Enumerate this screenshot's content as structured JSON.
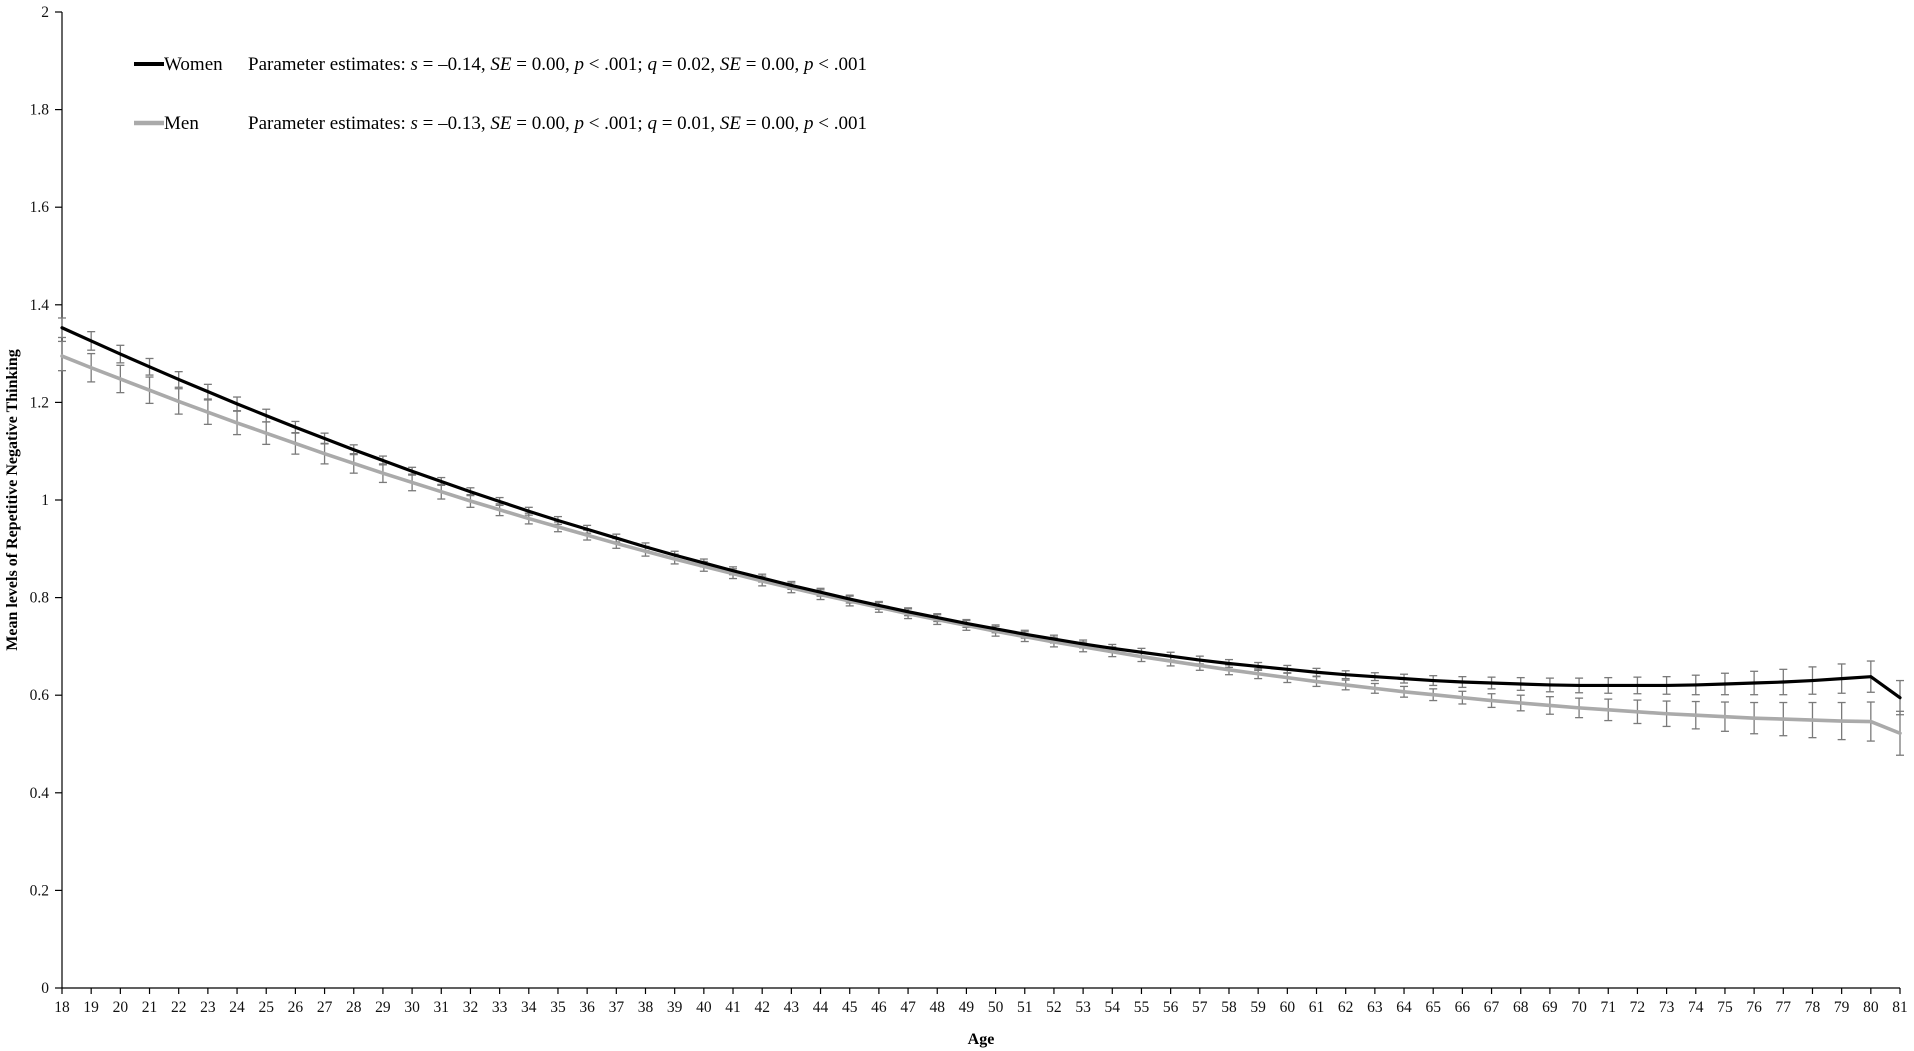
{
  "chart_data": {
    "type": "line",
    "title": "",
    "xlabel": "Age",
    "ylabel": "Mean levels of Repetitive Negative Thinking",
    "xlim": [
      18,
      81
    ],
    "ylim": [
      0,
      2
    ],
    "yticks": [
      "0",
      "0.2",
      "0.4",
      "0.6",
      "0.8",
      "1",
      "1.2",
      "1.4",
      "1.6",
      "1.8",
      "2"
    ],
    "ytick_values": [
      0,
      0.2,
      0.4,
      0.6,
      0.8,
      1,
      1.2,
      1.4,
      1.6,
      1.8,
      2
    ],
    "grid": false,
    "legend_position": "top-left",
    "x": [
      18,
      19,
      20,
      21,
      22,
      23,
      24,
      25,
      26,
      27,
      28,
      29,
      30,
      31,
      32,
      33,
      34,
      35,
      36,
      37,
      38,
      39,
      40,
      41,
      42,
      43,
      44,
      45,
      46,
      47,
      48,
      49,
      50,
      51,
      52,
      53,
      54,
      55,
      56,
      57,
      58,
      59,
      60,
      61,
      62,
      63,
      64,
      65,
      66,
      67,
      68,
      69,
      70,
      71,
      72,
      73,
      74,
      75,
      76,
      77,
      78,
      79,
      80,
      81
    ],
    "series": [
      {
        "name": "Women",
        "color": "#000000",
        "annotation": {
          "prefix": "Parameter estimates: ",
          "parts": [
            {
              "sym": "s",
              "text": " = –0.14, "
            },
            {
              "sym": "SE",
              "text": " = 0.00, "
            },
            {
              "sym": "p",
              "text": " < .001; "
            },
            {
              "sym": "q",
              "text": " = 0.02, "
            },
            {
              "sym": "SE",
              "text": " = 0.00, "
            },
            {
              "sym": "p",
              "text": " < .001"
            }
          ]
        },
        "values": [
          1.353,
          1.326,
          1.299,
          1.273,
          1.247,
          1.222,
          1.197,
          1.173,
          1.149,
          1.126,
          1.103,
          1.081,
          1.059,
          1.038,
          1.017,
          0.997,
          0.977,
          0.958,
          0.94,
          0.922,
          0.904,
          0.887,
          0.871,
          0.855,
          0.84,
          0.825,
          0.811,
          0.797,
          0.784,
          0.771,
          0.759,
          0.747,
          0.736,
          0.725,
          0.715,
          0.705,
          0.696,
          0.688,
          0.68,
          0.672,
          0.665,
          0.659,
          0.653,
          0.647,
          0.642,
          0.638,
          0.634,
          0.63,
          0.627,
          0.625,
          0.623,
          0.621,
          0.62,
          0.62,
          0.62,
          0.62,
          0.621,
          0.623,
          0.625,
          0.627,
          0.63,
          0.634,
          0.638,
          0.595
        ],
        "values_note": "",
        "error": [
          0.02,
          0.019,
          0.018,
          0.017,
          0.016,
          0.015,
          0.014,
          0.013,
          0.012,
          0.011,
          0.01,
          0.009,
          0.008,
          0.008,
          0.008,
          0.008,
          0.008,
          0.008,
          0.008,
          0.008,
          0.008,
          0.008,
          0.008,
          0.008,
          0.008,
          0.008,
          0.008,
          0.008,
          0.008,
          0.008,
          0.008,
          0.008,
          0.008,
          0.008,
          0.008,
          0.008,
          0.008,
          0.008,
          0.008,
          0.008,
          0.008,
          0.008,
          0.008,
          0.008,
          0.008,
          0.008,
          0.009,
          0.01,
          0.011,
          0.012,
          0.013,
          0.014,
          0.015,
          0.016,
          0.017,
          0.018,
          0.02,
          0.022,
          0.024,
          0.026,
          0.028,
          0.03,
          0.032,
          0.035
        ]
      },
      {
        "name": "Men",
        "color": "#aaaaaa",
        "annotation": {
          "prefix": "Parameter estimates: ",
          "parts": [
            {
              "sym": "s",
              "text": " = –0.13, "
            },
            {
              "sym": "SE",
              "text": " = 0.00, "
            },
            {
              "sym": "p",
              "text": " < .001; "
            },
            {
              "sym": "q",
              "text": " = 0.01, "
            },
            {
              "sym": "SE",
              "text": " = 0.00, "
            },
            {
              "sym": "p",
              "text": " < .001"
            }
          ]
        },
        "values": [
          1.295,
          1.271,
          1.248,
          1.225,
          1.202,
          1.18,
          1.158,
          1.137,
          1.116,
          1.095,
          1.075,
          1.055,
          1.036,
          1.017,
          0.998,
          0.98,
          0.962,
          0.945,
          0.928,
          0.911,
          0.895,
          0.879,
          0.864,
          0.849,
          0.834,
          0.82,
          0.806,
          0.793,
          0.78,
          0.767,
          0.755,
          0.743,
          0.731,
          0.72,
          0.709,
          0.699,
          0.689,
          0.679,
          0.67,
          0.661,
          0.652,
          0.644,
          0.636,
          0.628,
          0.621,
          0.614,
          0.607,
          0.601,
          0.595,
          0.589,
          0.584,
          0.579,
          0.574,
          0.57,
          0.566,
          0.562,
          0.559,
          0.556,
          0.553,
          0.551,
          0.549,
          0.547,
          0.546,
          0.522
        ],
        "error": [
          0.03,
          0.029,
          0.028,
          0.027,
          0.026,
          0.025,
          0.024,
          0.023,
          0.022,
          0.021,
          0.02,
          0.019,
          0.017,
          0.015,
          0.013,
          0.012,
          0.011,
          0.01,
          0.01,
          0.01,
          0.01,
          0.01,
          0.01,
          0.01,
          0.01,
          0.01,
          0.01,
          0.01,
          0.01,
          0.01,
          0.01,
          0.01,
          0.01,
          0.01,
          0.01,
          0.01,
          0.01,
          0.01,
          0.01,
          0.01,
          0.01,
          0.01,
          0.01,
          0.01,
          0.01,
          0.01,
          0.011,
          0.012,
          0.013,
          0.014,
          0.016,
          0.018,
          0.02,
          0.022,
          0.024,
          0.026,
          0.028,
          0.03,
          0.032,
          0.034,
          0.036,
          0.038,
          0.04,
          0.045
        ]
      }
    ]
  }
}
